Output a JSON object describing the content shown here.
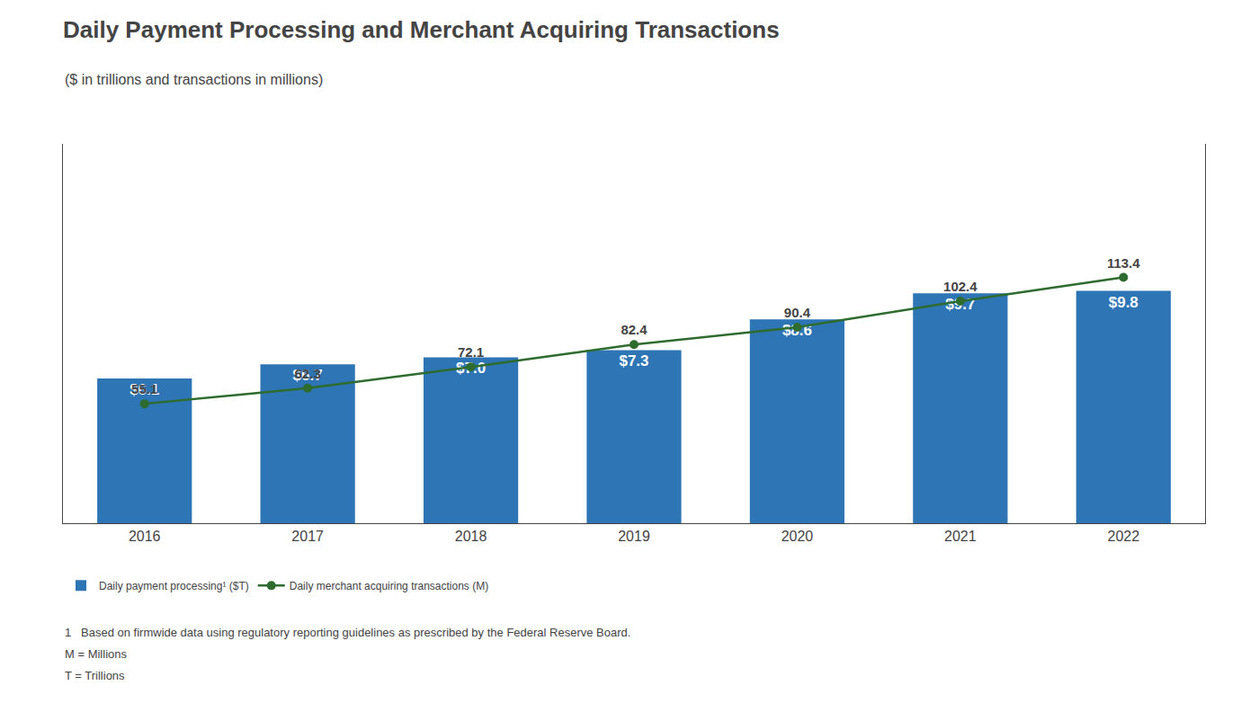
{
  "chart_data": {
    "type": "bar",
    "title": "Daily Payment Processing and Merchant Acquiring Transactions",
    "subtitle": "($ in trillions and transactions in millions)",
    "categories": [
      "2016",
      "2017",
      "2018",
      "2019",
      "2020",
      "2021",
      "2022"
    ],
    "series": [
      {
        "name": "Daily payment processing¹ ($T)",
        "type": "bar",
        "color": "#2E75B6",
        "values": [
          6.1,
          6.7,
          7.0,
          7.3,
          8.6,
          9.7,
          9.8
        ],
        "value_labels": [
          "$6.1",
          "$6.7",
          "$7.0",
          "$7.3",
          "$8.6",
          "$9.7",
          "$9.8"
        ]
      },
      {
        "name": "Daily merchant acquiring transactions (M)",
        "type": "line",
        "color": "#2E6B2E",
        "marker": "circle",
        "axis": "y2",
        "values": [
          55.1,
          62.3,
          72.1,
          82.4,
          90.4,
          102.4,
          113.4
        ]
      }
    ],
    "ylim": [
      0,
      16.0
    ],
    "y2lim": [
      0,
      175
    ],
    "data_labels": true,
    "tick_labels": "x",
    "grid": false,
    "legend": "bottom",
    "annotations": [
      "1   Based on firmwide data using regulatory reporting guidelines as prescribed by the Federal Reserve Board.",
      "M = Millions",
      "T = Trillions"
    ]
  }
}
